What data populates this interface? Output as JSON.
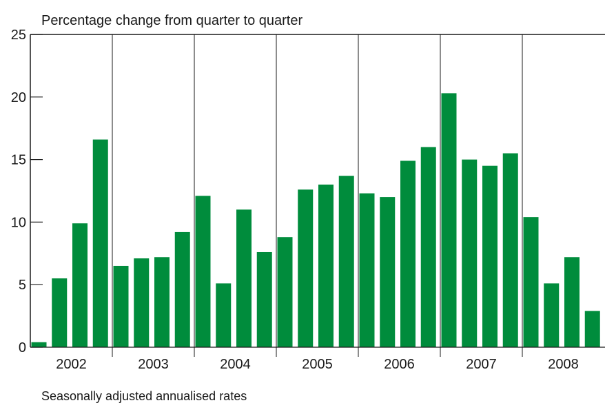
{
  "chart_data": {
    "type": "bar",
    "title": "Percentage change from quarter to quarter",
    "footnote": "Seasonally adjusted annualised rates",
    "xlabel": "",
    "ylabel": "",
    "ylim": [
      0,
      25
    ],
    "yticks": [
      0,
      5,
      10,
      15,
      20,
      25
    ],
    "grid": false,
    "bar_color": "#008c3c",
    "year_labels": [
      "2002",
      "2003",
      "2004",
      "2005",
      "2006",
      "2007",
      "2008"
    ],
    "categories": [
      "2002 Q1",
      "2002 Q2",
      "2002 Q3",
      "2002 Q4",
      "2003 Q1",
      "2003 Q2",
      "2003 Q3",
      "2003 Q4",
      "2004 Q1",
      "2004 Q2",
      "2004 Q3",
      "2004 Q4",
      "2005 Q1",
      "2005 Q2",
      "2005 Q3",
      "2005 Q4",
      "2006 Q1",
      "2006 Q2",
      "2006 Q3",
      "2006 Q4",
      "2007 Q1",
      "2007 Q2",
      "2007 Q3",
      "2007 Q4",
      "2008 Q1",
      "2008 Q2",
      "2008 Q3",
      "2008 Q4"
    ],
    "values": [
      0.4,
      5.5,
      9.9,
      16.6,
      6.5,
      7.1,
      7.2,
      9.2,
      12.1,
      5.1,
      11.0,
      7.6,
      8.8,
      12.6,
      13.0,
      13.7,
      12.3,
      12.0,
      14.9,
      16.0,
      20.3,
      15.0,
      14.5,
      15.5,
      10.4,
      5.1,
      7.2,
      2.9
    ]
  }
}
